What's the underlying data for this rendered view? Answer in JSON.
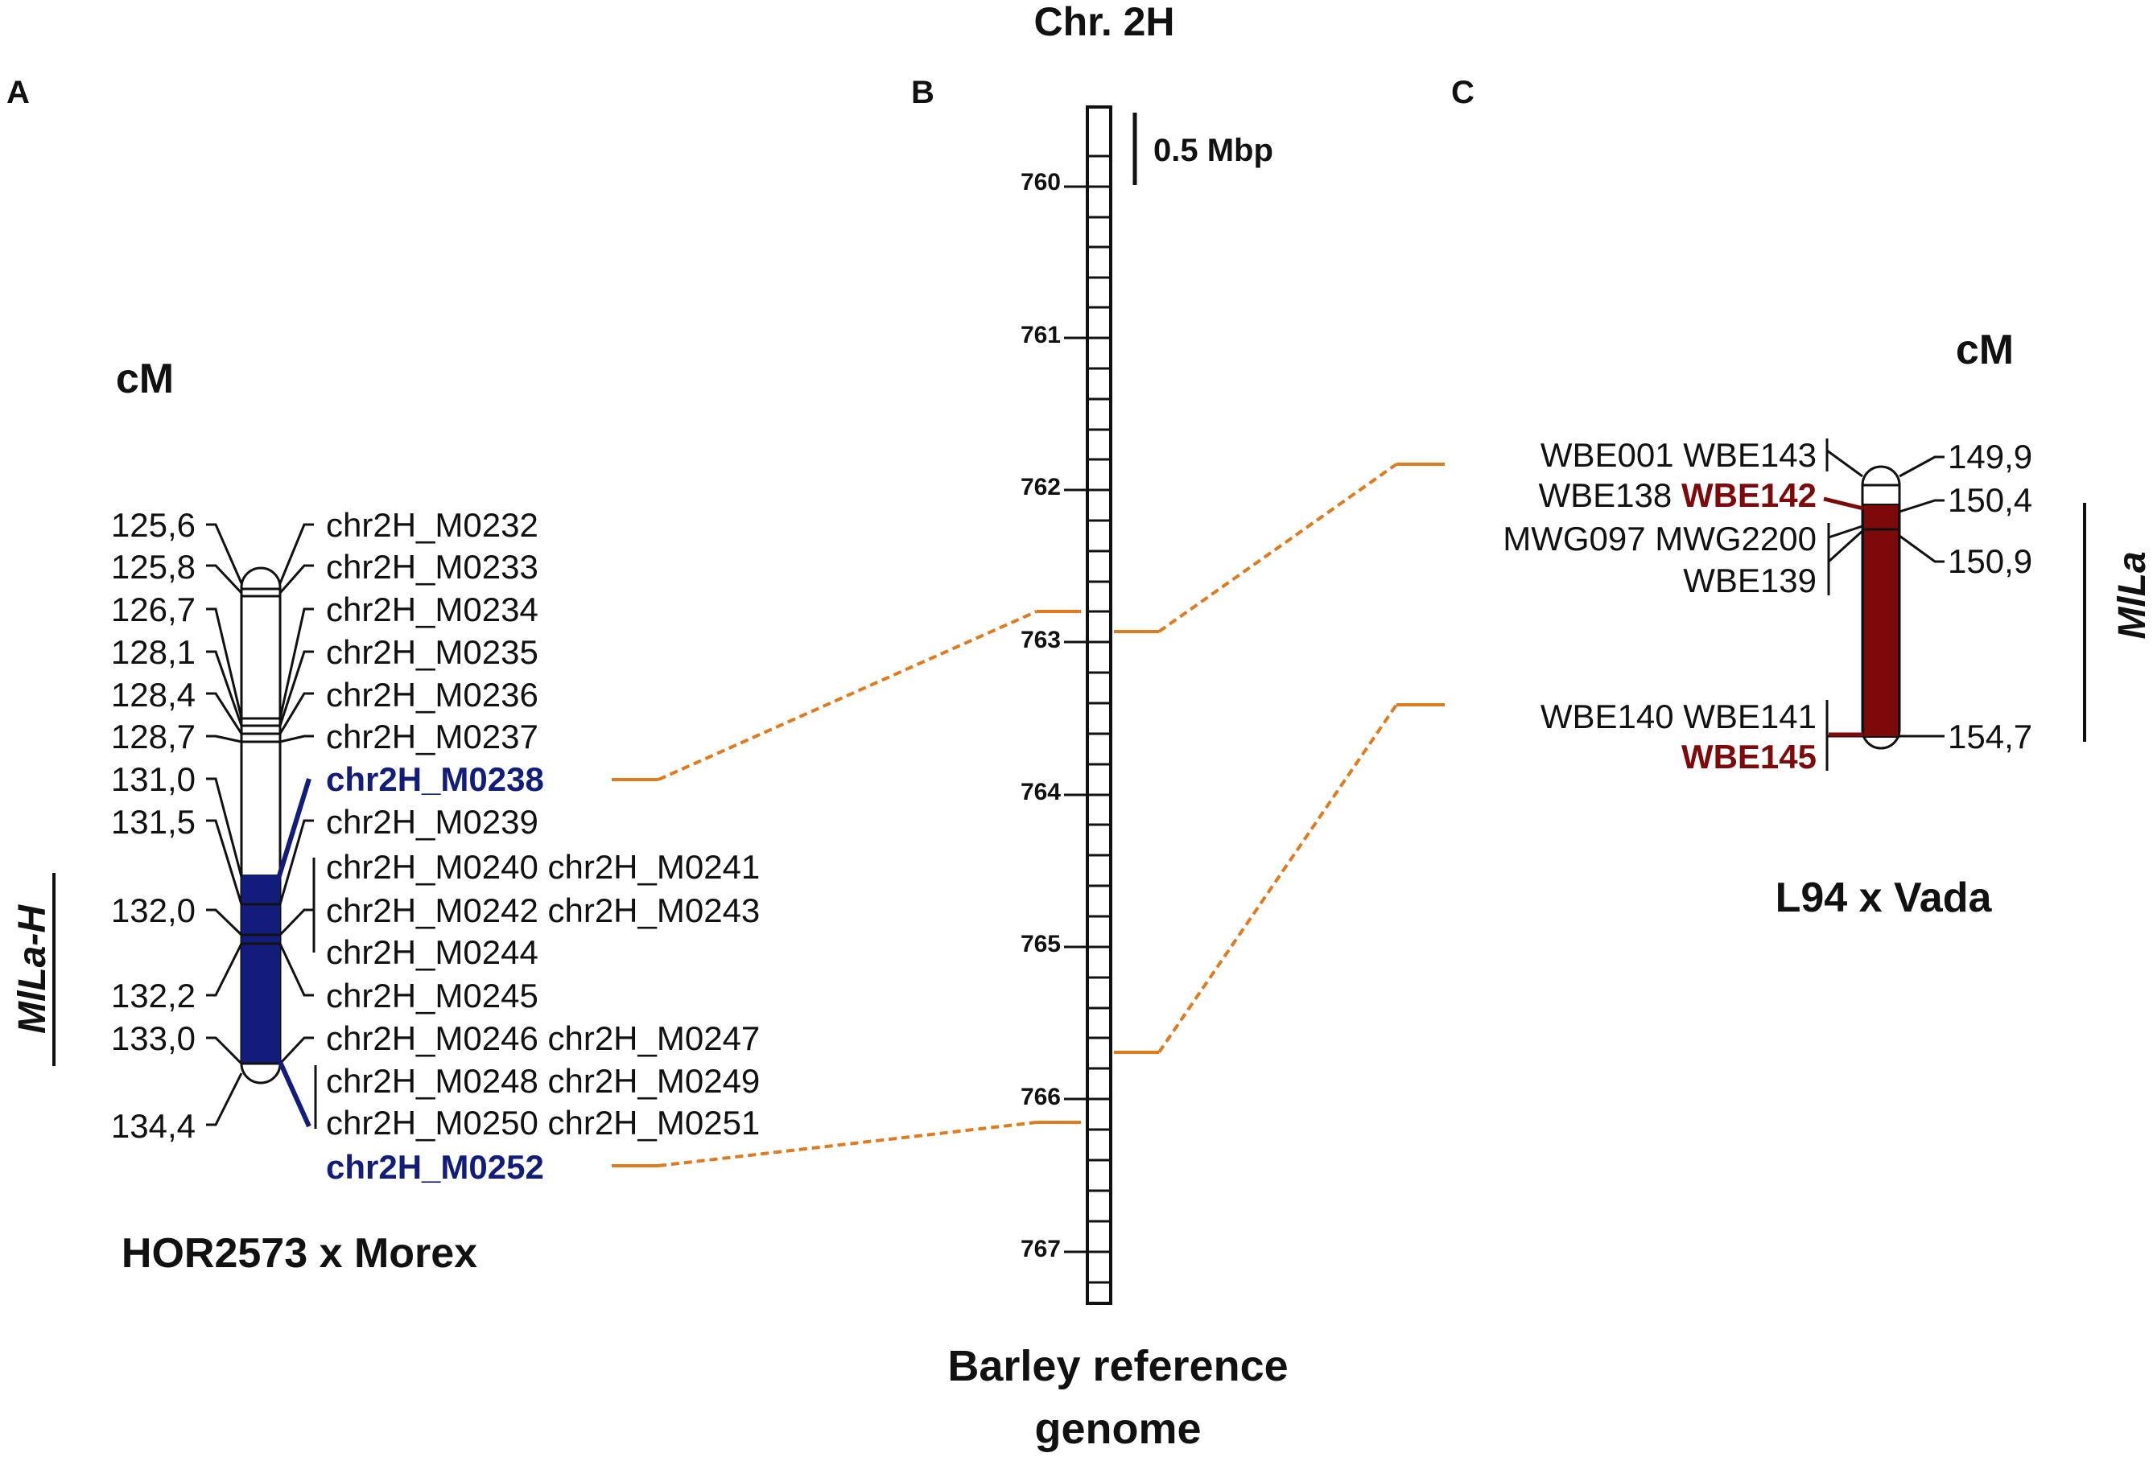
{
  "title": "Chr. 2H",
  "panels": {
    "a": "A",
    "b": "B",
    "c": "C"
  },
  "scale_label": "0.5 Mbp",
  "colors": {
    "blue": "#121c7a",
    "red": "#7d0a0a",
    "orange": "#e07a1f",
    "line": "#111111"
  },
  "map_a": {
    "unit": "cM",
    "cross": "HOR2573 x Morex",
    "locus": "MlLa-H",
    "positions": [
      "125,6",
      "125,8",
      "126,7",
      "128,1",
      "128,4",
      "128,7",
      "131,0",
      "131,5",
      "132,0",
      "132,2",
      "133,0",
      "134,4"
    ],
    "markers": [
      "chr2H_M0232",
      "chr2H_M0233",
      "chr2H_M0234",
      "chr2H_M0235",
      "chr2H_M0236",
      "chr2H_M0237",
      "chr2H_M0238",
      "chr2H_M0239",
      "chr2H_M0240 chr2H_M0241",
      "chr2H_M0242 chr2H_M0243",
      "chr2H_M0244",
      "chr2H_M0245",
      "chr2H_M0246 chr2H_M0247",
      "chr2H_M0248 chr2H_M0249",
      "chr2H_M0250 chr2H_M0251",
      "chr2H_M0252"
    ]
  },
  "map_b": {
    "label_line1": "Barley reference",
    "label_line2": "genome",
    "ticks": [
      "760",
      "761",
      "762",
      "763",
      "764",
      "765",
      "766",
      "767"
    ]
  },
  "map_c": {
    "unit": "cM",
    "cross": "L94 x Vada",
    "locus": "MlLa",
    "positions": [
      "149,9",
      "150,4",
      "150,9",
      "154,7"
    ],
    "marker_rows": [
      {
        "plain": "WBE001 WBE143",
        "red": ""
      },
      {
        "plain": "WBE138 ",
        "red": "WBE142"
      },
      {
        "plain": "MWG097 MWG2200",
        "red": ""
      },
      {
        "plain": "WBE139",
        "red": ""
      },
      {
        "plain": "WBE140 WBE141",
        "red": ""
      },
      {
        "plain": "",
        "red": "WBE145"
      }
    ]
  }
}
